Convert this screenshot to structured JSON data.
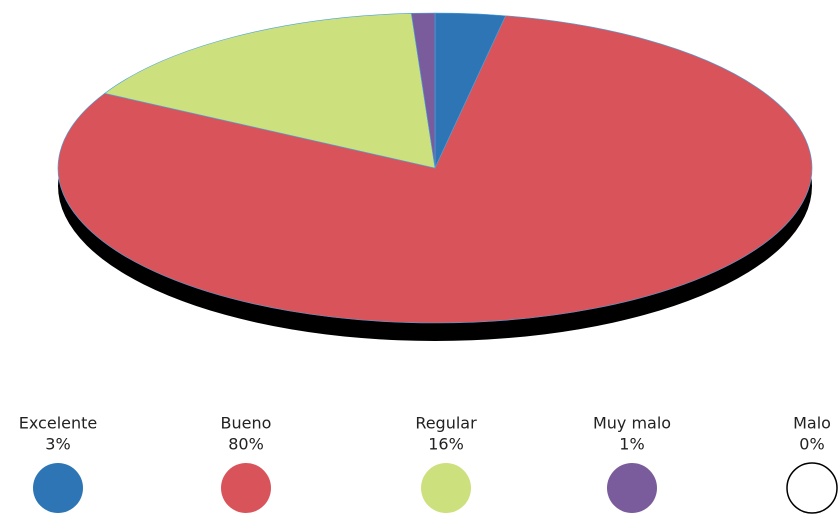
{
  "chart_data": {
    "type": "pie",
    "categories": [
      "Excelente",
      "Bueno",
      "Regular",
      "Muy malo",
      "Malo"
    ],
    "values": [
      3,
      80,
      16,
      1,
      0
    ],
    "value_labels": [
      "3%",
      "80%",
      "16%",
      "1%",
      "0%"
    ],
    "colors": [
      "#2e75b6",
      "#d9545a",
      "#cde07e",
      "#7a5c9c",
      "#ffffff"
    ]
  }
}
